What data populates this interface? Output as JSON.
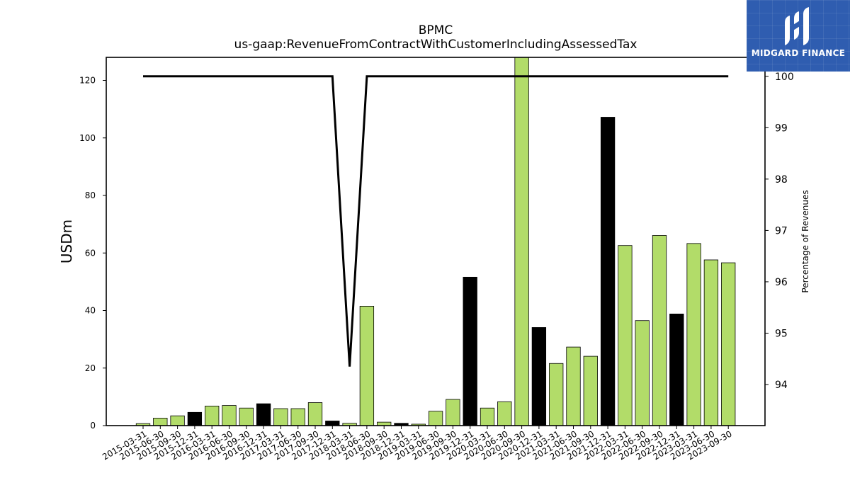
{
  "chart_data": {
    "type": "bar",
    "title": "BPMC",
    "subtitle": "us-gaap:RevenueFromContractWithCustomerIncludingAssessedTax",
    "ylabel": "USDm",
    "y2label": "Percentage of Revenues",
    "ylim": [
      0,
      128
    ],
    "y2lim": [
      93.2,
      100.37
    ],
    "yticks": [
      0,
      20,
      40,
      60,
      80,
      100,
      120
    ],
    "y2ticks": [
      94,
      95,
      96,
      97,
      98,
      99,
      100
    ],
    "categories": [
      "2015-03-31",
      "2015-06-30",
      "2015-09-30",
      "2015-12-31",
      "2016-03-31",
      "2016-06-30",
      "2016-09-30",
      "2016-12-31",
      "2017-03-31",
      "2017-06-30",
      "2017-09-30",
      "2017-12-31",
      "2018-03-31",
      "2018-06-30",
      "2018-09-30",
      "2018-12-31",
      "2019-03-31",
      "2019-06-30",
      "2019-09-30",
      "2019-12-31",
      "2020-03-31",
      "2020-06-30",
      "2020-09-30",
      "2020-12-31",
      "2021-03-31",
      "2021-06-30",
      "2021-09-30",
      "2021-12-31",
      "2022-03-31",
      "2022-06-30",
      "2022-09-30",
      "2022-12-31",
      "2023-03-31",
      "2023-06-30",
      "2023-09-30"
    ],
    "values": [
      0.7,
      2.6,
      3.4,
      4.6,
      6.8,
      7.0,
      6.1,
      7.6,
      5.9,
      5.9,
      8.0,
      1.6,
      0.8,
      41.5,
      1.2,
      0.8,
      0.5,
      5.0,
      9.1,
      51.6,
      6.1,
      8.3,
      129,
      34.1,
      21.6,
      27.3,
      24.1,
      107.2,
      62.6,
      36.5,
      66.1,
      38.8,
      63.3,
      57.6,
      56.6
    ],
    "bar_colors": [
      "#b2dc69",
      "#b2dc69",
      "#b2dc69",
      "#000000",
      "#b2dc69",
      "#b2dc69",
      "#b2dc69",
      "#000000",
      "#b2dc69",
      "#b2dc69",
      "#b2dc69",
      "#000000",
      "#b2dc69",
      "#b2dc69",
      "#b2dc69",
      "#000000",
      "#b2dc69",
      "#b2dc69",
      "#b2dc69",
      "#000000",
      "#b2dc69",
      "#b2dc69",
      "#b2dc69",
      "#000000",
      "#b2dc69",
      "#b2dc69",
      "#b2dc69",
      "#000000",
      "#b2dc69",
      "#b2dc69",
      "#b2dc69",
      "#000000",
      "#b2dc69",
      "#b2dc69",
      "#b2dc69"
    ],
    "line_series": {
      "axis": "right",
      "color": "#000000",
      "values": [
        100,
        100,
        100,
        100,
        100,
        100,
        100,
        100,
        100,
        100,
        100,
        100,
        94.35,
        100,
        100,
        100,
        100,
        100,
        100,
        100,
        100,
        100,
        100,
        100,
        100,
        100,
        100,
        100,
        100,
        100,
        100,
        100,
        100,
        100,
        100
      ]
    },
    "colors": {
      "q1_q3": "#b2dc69",
      "q4": "#000000",
      "bar_edge": "#000000"
    }
  },
  "logo": {
    "text": "MIDGARD FINANCE",
    "background": "#2f5db0"
  }
}
